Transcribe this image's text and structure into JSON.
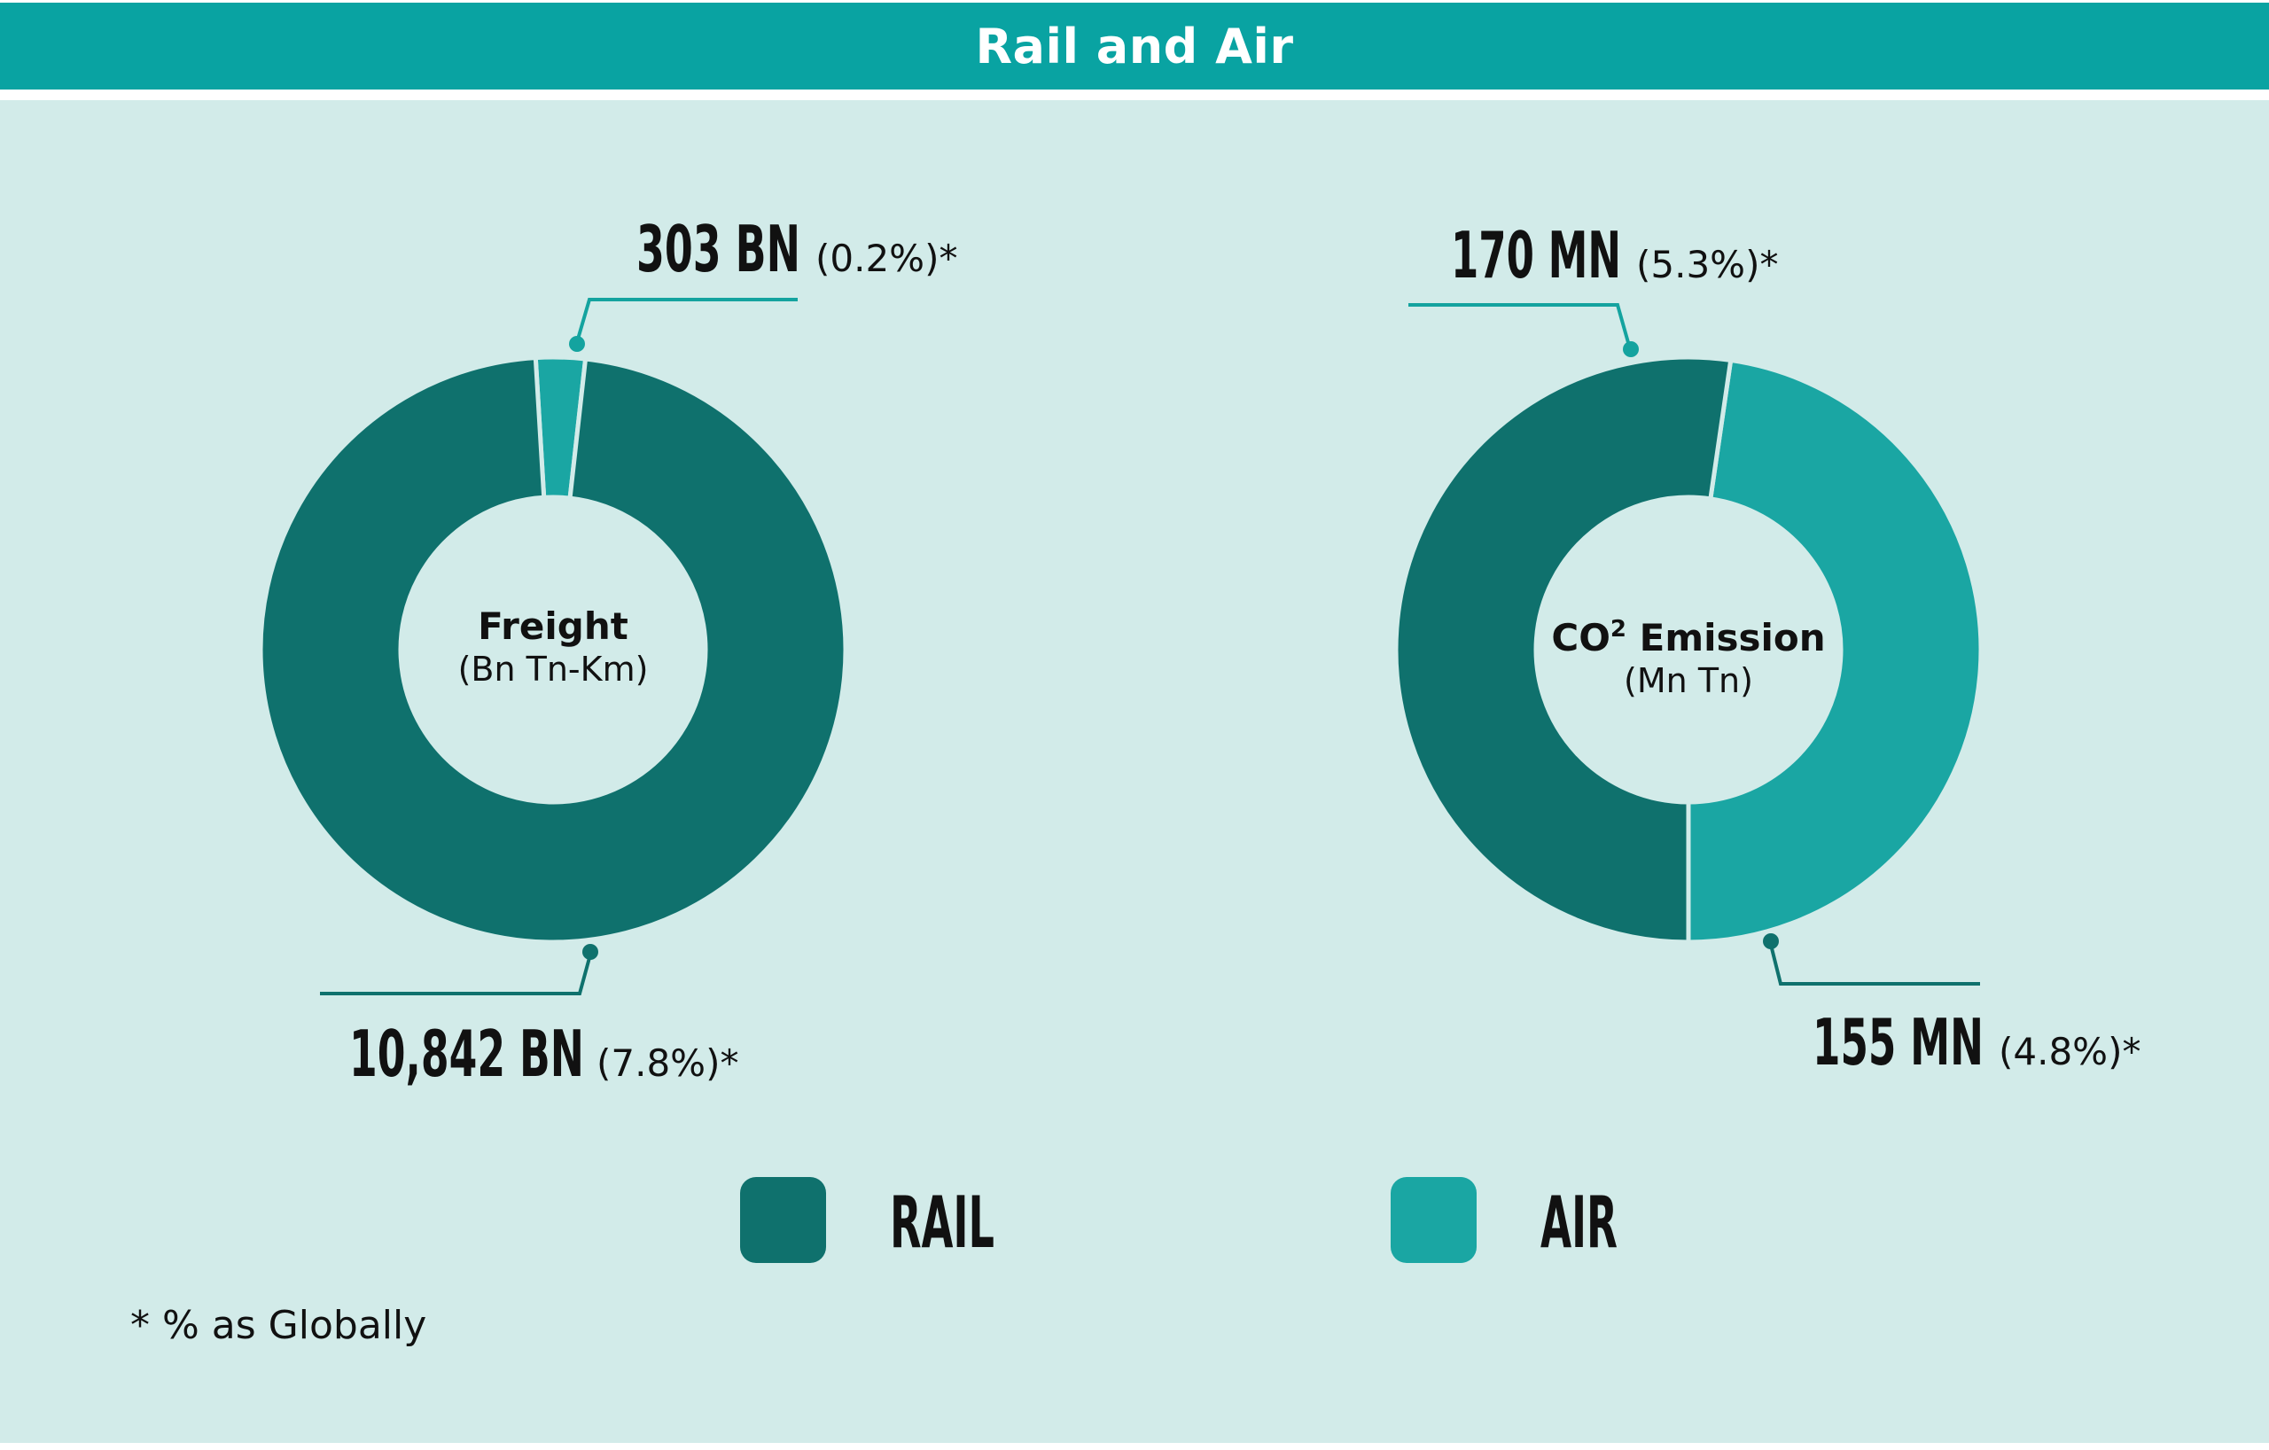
{
  "header": {
    "title": "Rail and Air"
  },
  "colors": {
    "rail": "#0f716d",
    "air": "#1aa6a3",
    "header": "#09a3a2",
    "panel": "#d2ebe9",
    "separator": "#d2ebe9"
  },
  "chart_data": [
    {
      "type": "pie",
      "donut": true,
      "center_title": "Freight",
      "center_subtitle": "(Bn Tn-Km)",
      "slices": [
        {
          "name": "RAIL",
          "value": 10842,
          "label": "10,842 BN",
          "percent_label": "(7.8%)*"
        },
        {
          "name": "AIR",
          "value": 303,
          "label": "303 BN",
          "percent_label": "(0.2%)*"
        }
      ]
    },
    {
      "type": "pie",
      "donut": true,
      "center_title_prefix": "CO",
      "center_title_sup": "2",
      "center_title_suffix": " Emission",
      "center_subtitle": "(Mn Tn)",
      "slices": [
        {
          "name": "RAIL",
          "value": 170,
          "label": "170 MN",
          "percent_label": "(5.3%)*"
        },
        {
          "name": "AIR",
          "value": 155,
          "label": "155 MN",
          "percent_label": "(4.8%)*"
        }
      ]
    }
  ],
  "legend": [
    {
      "label": "RAIL",
      "color_key": "rail"
    },
    {
      "label": "AIR",
      "color_key": "air"
    }
  ],
  "footnote": "* % as Globally"
}
